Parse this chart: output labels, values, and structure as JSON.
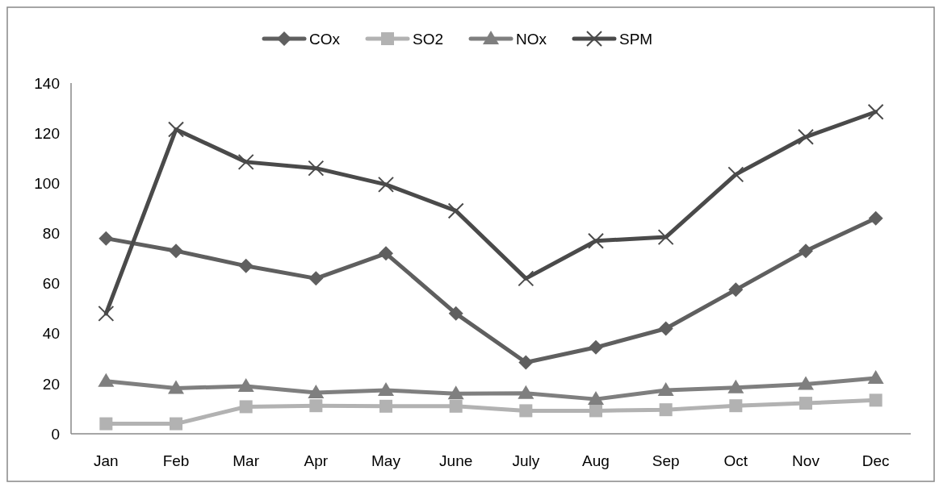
{
  "chart_data": {
    "type": "line",
    "categories": [
      "Jan",
      "Feb",
      "Mar",
      "Apr",
      "May",
      "June",
      "July",
      "Aug",
      "Sep",
      "Oct",
      "Nov",
      "Dec"
    ],
    "ylim": [
      0,
      140
    ],
    "yticks": [
      0,
      20,
      40,
      60,
      80,
      100,
      120,
      140
    ],
    "grid": false,
    "legend": "top",
    "line_style": "solid",
    "series": [
      {
        "name": "COx",
        "color": "#5f5f5f",
        "marker": "diamond",
        "values": [
          78,
          73,
          67,
          62,
          72,
          48,
          28.5,
          34.5,
          42,
          57.5,
          73,
          86
        ]
      },
      {
        "name": "SO2",
        "color": "#b2b2b2",
        "marker": "square",
        "values": [
          4,
          4,
          10.8,
          11.2,
          11,
          11,
          9.2,
          9.2,
          9.6,
          11.2,
          12.2,
          13.4
        ]
      },
      {
        "name": "NOx",
        "color": "#7f7f7f",
        "marker": "triangle",
        "values": [
          21,
          18.2,
          19,
          16.4,
          17.4,
          16,
          16.2,
          13.8,
          17.4,
          18.4,
          19.8,
          22.2
        ]
      },
      {
        "name": "SPM",
        "color": "#4a4a4a",
        "marker": "cross",
        "values": [
          48,
          121.5,
          108.5,
          106,
          99.5,
          89,
          62,
          77,
          78.5,
          103.5,
          118.5,
          128.5
        ]
      }
    ]
  }
}
